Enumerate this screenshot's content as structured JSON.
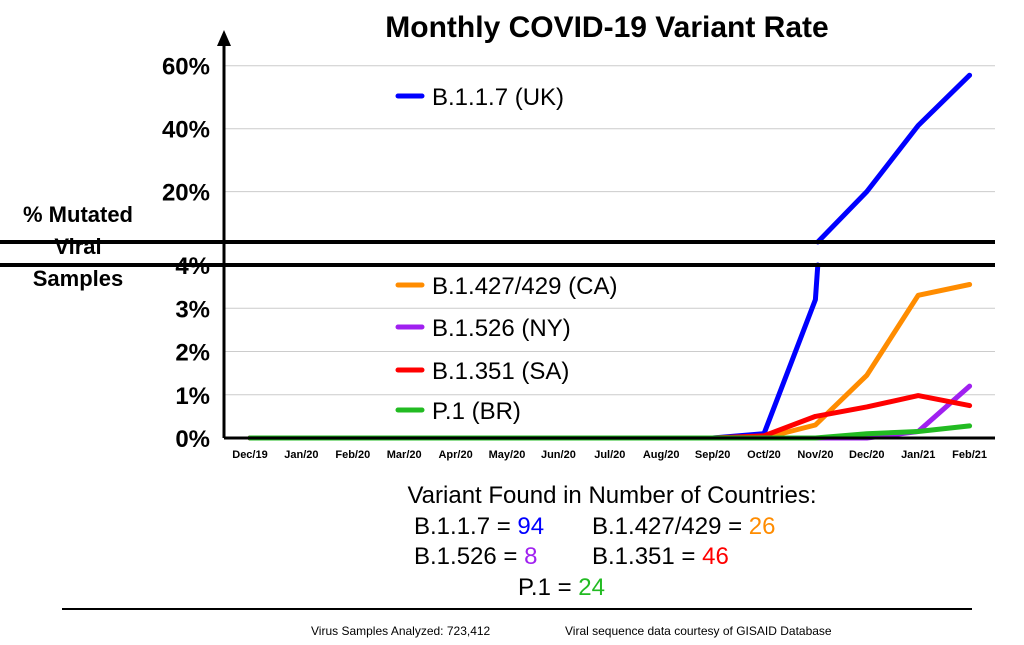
{
  "chart_data": {
    "type": "line",
    "title": "Monthly COVID-19 Variant Rate",
    "ylabel_lines": [
      "% Mutated",
      "Viral",
      "Samples"
    ],
    "xlabel": "",
    "categories": [
      "Dec/19",
      "Jan/20",
      "Feb/20",
      "Mar/20",
      "Apr/20",
      "May/20",
      "Jun/20",
      "Jul/20",
      "Aug/20",
      "Sep/20",
      "Oct/20",
      "Nov/20",
      "Dec/20",
      "Jan/21",
      "Feb/21"
    ],
    "y_axis_broken": true,
    "lower_panel": {
      "ylim": [
        0,
        4
      ],
      "ticks": [
        0,
        1,
        2,
        3,
        4
      ],
      "tick_labels": [
        "0%",
        "1%",
        "2%",
        "3%",
        "4%"
      ]
    },
    "upper_panel": {
      "ylim": [
        4,
        65
      ],
      "ticks": [
        20,
        40,
        60
      ],
      "tick_labels": [
        "20%",
        "40%",
        "60%"
      ]
    },
    "grid": true,
    "series": [
      {
        "name": "B.1.1.7 (UK)",
        "color": "#0000ff",
        "values": [
          0,
          0,
          0,
          0,
          0,
          0,
          0,
          0,
          0,
          0,
          0.1,
          3.2,
          20,
          41,
          57
        ]
      },
      {
        "name": "B.1.427/429 (CA)",
        "color": "#ff8c00",
        "values": [
          0,
          0,
          0,
          0,
          0,
          0,
          0,
          0,
          0,
          0,
          0,
          0.3,
          1.45,
          3.3,
          3.55
        ]
      },
      {
        "name": "B.1.526 (NY)",
        "color": "#a020f0",
        "values": [
          0,
          0,
          0,
          0,
          0,
          0,
          0,
          0,
          0,
          0,
          0,
          0,
          0,
          0.15,
          1.2
        ]
      },
      {
        "name": "B.1.351 (SA)",
        "color": "#ff0000",
        "values": [
          0,
          0,
          0,
          0,
          0,
          0,
          0,
          0,
          0,
          0,
          0.05,
          0.5,
          0.72,
          0.98,
          0.75
        ]
      },
      {
        "name": "P.1 (BR)",
        "color": "#22bb22",
        "values": [
          0,
          0,
          0,
          0,
          0,
          0,
          0,
          0,
          0,
          0,
          0,
          0,
          0.1,
          0.15,
          0.28
        ]
      }
    ]
  },
  "countries": {
    "heading": "Variant Found in Number of Countries:",
    "items": [
      {
        "label": "B.1.1.7 = ",
        "value": "94",
        "color": "#0000ff"
      },
      {
        "label": "B.1.427/429 = ",
        "value": "26",
        "color": "#ff8c00"
      },
      {
        "label": "B.1.526 = ",
        "value": "8",
        "color": "#a020f0"
      },
      {
        "label": "B.1.351 = ",
        "value": "46",
        "color": "#ff0000"
      },
      {
        "label": "P.1 = ",
        "value": "24",
        "color": "#22bb22"
      }
    ]
  },
  "footer": {
    "samples": "Virus Samples Analyzed: 723,412",
    "credit": "Viral sequence data courtesy of GISAID Database"
  }
}
